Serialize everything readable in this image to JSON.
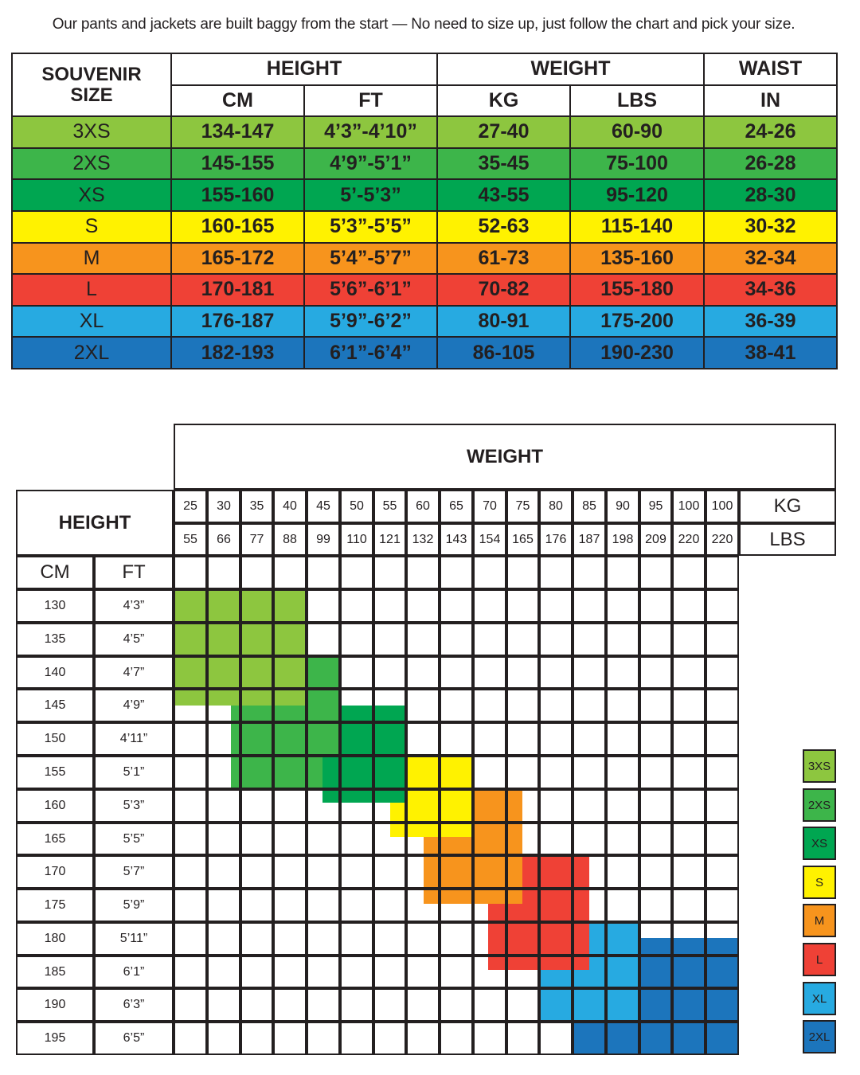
{
  "title": "Our pants and jackets are built baggy from the start — No need to size up, just follow the chart and pick your size.",
  "size_table": {
    "headers": {
      "size": "SOUVENIR SIZE",
      "height": "HEIGHT",
      "weight": "WEIGHT",
      "waist": "WAIST",
      "cm": "CM",
      "ft": "FT",
      "kg": "KG",
      "lbs": "LBS",
      "in": "IN"
    },
    "rows": [
      {
        "size": "3XS",
        "cm": "134-147",
        "ft": "4’3”-4’10”",
        "kg": "27-40",
        "lbs": "60-90",
        "in": "24-26",
        "color": "#8dc63f"
      },
      {
        "size": "2XS",
        "cm": "145-155",
        "ft": "4’9”-5’1”",
        "kg": "35-45",
        "lbs": "75-100",
        "in": "26-28",
        "color": "#3db54a"
      },
      {
        "size": "XS",
        "cm": "155-160",
        "ft": "5’-5’3”",
        "kg": "43-55",
        "lbs": "95-120",
        "in": "28-30",
        "color": "#00a651"
      },
      {
        "size": "S",
        "cm": "160-165",
        "ft": "5’3”-5’5”",
        "kg": "52-63",
        "lbs": "115-140",
        "in": "30-32",
        "color": "#fff200"
      },
      {
        "size": "M",
        "cm": "165-172",
        "ft": "5’4”-5’7”",
        "kg": "61-73",
        "lbs": "135-160",
        "in": "32-34",
        "color": "#f7941d"
      },
      {
        "size": "L",
        "cm": "170-181",
        "ft": "5’6”-6’1”",
        "kg": "70-82",
        "lbs": "155-180",
        "in": "34-36",
        "color": "#ef4136"
      },
      {
        "size": "XL",
        "cm": "176-187",
        "ft": "5’9”-6’2”",
        "kg": "80-91",
        "lbs": "175-200",
        "in": "36-39",
        "color": "#27aae1"
      },
      {
        "size": "2XL",
        "cm": "182-193",
        "ft": "6’1”-6’4”",
        "kg": "86-105",
        "lbs": "190-230",
        "in": "38-41",
        "color": "#1c75bc"
      }
    ]
  },
  "grid_chart": {
    "weight_label": "WEIGHT",
    "height_label": "HEIGHT",
    "kg_label": "KG",
    "lbs_label": "LBS",
    "cm_label": "CM",
    "ft_label": "FT",
    "kg_values": [
      "25",
      "30",
      "35",
      "40",
      "45",
      "50",
      "55",
      "60",
      "65",
      "70",
      "75",
      "80",
      "85",
      "90",
      "95",
      "100",
      "100"
    ],
    "lbs_values": [
      "55",
      "66",
      "77",
      "88",
      "99",
      "110",
      "121",
      "132",
      "143",
      "154",
      "165",
      "176",
      "187",
      "198",
      "209",
      "220",
      "220"
    ],
    "cm_values": [
      "130",
      "135",
      "140",
      "145",
      "150",
      "155",
      "160",
      "165",
      "170",
      "175",
      "180",
      "185",
      "190",
      "195"
    ],
    "ft_values": [
      "4’3”",
      "4’5”",
      "4’7”",
      "4’9”",
      "4’11”",
      "5’1”",
      "5’3”",
      "5’5”",
      "5’7”",
      "5’9”",
      "5’11”",
      "6’1”",
      "6’3”",
      "6’5”"
    ],
    "legend": [
      {
        "label": "3XS",
        "color": "#8dc63f"
      },
      {
        "label": "2XS",
        "color": "#3db54a"
      },
      {
        "label": "XS",
        "color": "#00a651"
      },
      {
        "label": "S",
        "color": "#fff200"
      },
      {
        "label": "M",
        "color": "#f7941d"
      },
      {
        "label": "L",
        "color": "#ef4136"
      },
      {
        "label": "XL",
        "color": "#27aae1"
      },
      {
        "label": "2XL",
        "color": "#1c75bc"
      }
    ]
  }
}
